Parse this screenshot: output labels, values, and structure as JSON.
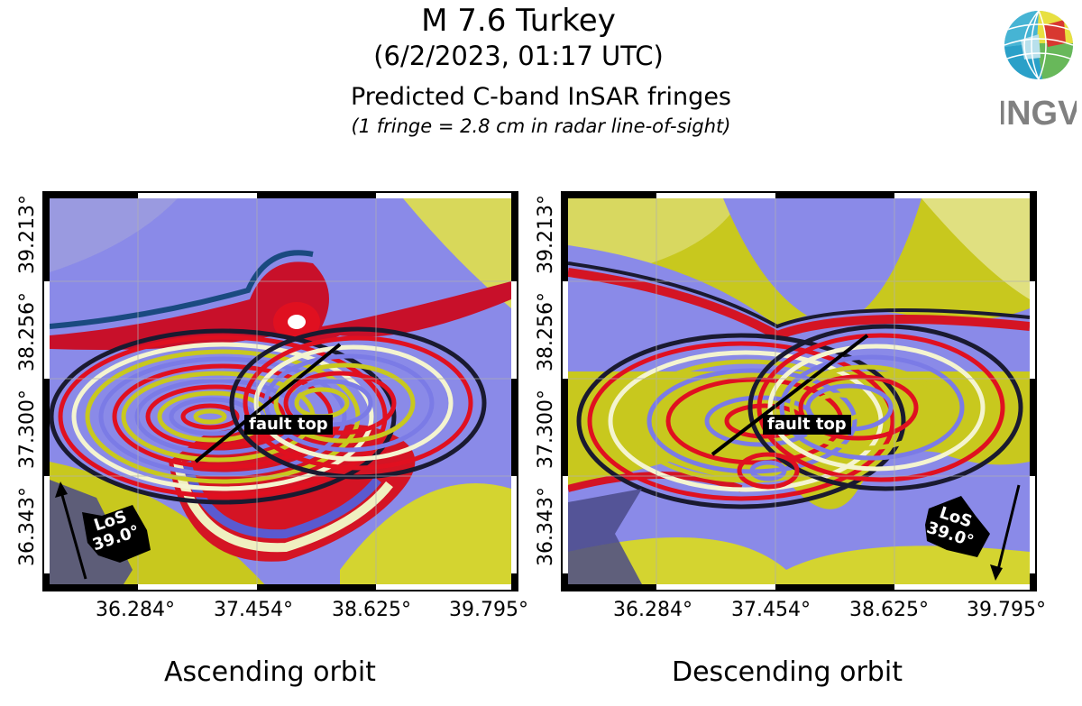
{
  "header": {
    "title": "M 7.6 Turkey",
    "datetime": "(6/2/2023, 01:17 UTC)",
    "subtitle": "Predicted C-band InSAR fringes",
    "note": "(1 fringe = 2.8 cm in radar line-of-sight)"
  },
  "logo": {
    "text": "INGV",
    "icon": "globe-logo-icon"
  },
  "axes": {
    "x_ticks": [
      "36.284°",
      "37.454°",
      "38.625°",
      "39.795°"
    ],
    "y_ticks": [
      "36.343°",
      "37.300°",
      "38.256°",
      "39.213°"
    ]
  },
  "panels": [
    {
      "caption": "Ascending orbit",
      "fault_label": "fault top",
      "los_label": "LoS",
      "los_angle": "39.0°",
      "arrow_direction": "up"
    },
    {
      "caption": "Descending orbit",
      "fault_label": "fault top",
      "los_label": "LoS",
      "los_angle": "39.0°",
      "arrow_direction": "down"
    }
  ],
  "colors": {
    "fringe_blue": "#7b7be6",
    "fringe_yellow": "#c8c81e",
    "fringe_red": "#e0101e",
    "fringe_dark": "#1a1a30",
    "frame": "#000000",
    "land_mask": "#5a5a8c"
  }
}
